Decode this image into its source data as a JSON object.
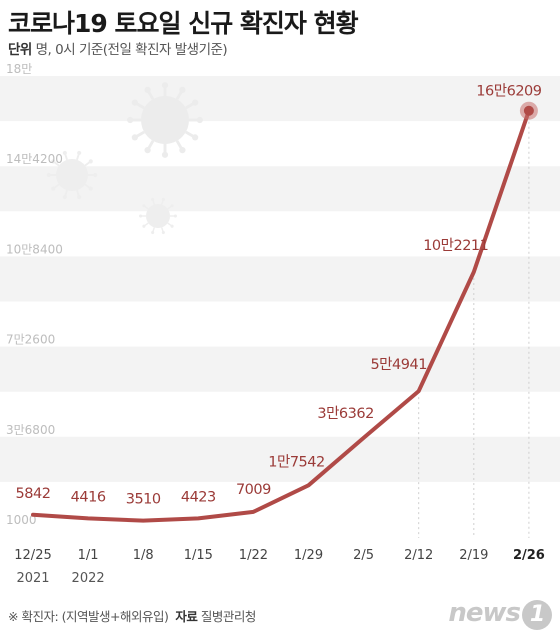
{
  "header": {
    "title": "코로나19 토요일 신규 확진자 현황",
    "unit_label": "단위",
    "unit_text": "명, 0시 기준(전일 확진자 발생기준)"
  },
  "chart_data": {
    "type": "line",
    "title": "코로나19 토요일 신규 확진자 현황",
    "x": [
      "12/25",
      "1/1",
      "1/8",
      "1/15",
      "1/22",
      "1/29",
      "2/5",
      "2/12",
      "2/19",
      "2/26"
    ],
    "x_sub": [
      "2021",
      "2022",
      "",
      "",
      "",
      "",
      "",
      "",
      "",
      ""
    ],
    "values": [
      5842,
      4416,
      3510,
      4423,
      7009,
      17542,
      null,
      54941,
      102211,
      166209
    ],
    "data_labels": [
      "5842",
      "4416",
      "3510",
      "4423",
      "7009",
      "1만7542",
      "3만6362",
      "5만4941",
      "10만2211",
      "16만6209"
    ],
    "line_values": [
      5842,
      4416,
      3510,
      4423,
      7009,
      17542,
      36362,
      54941,
      102211,
      166209
    ],
    "y_ticks": [
      1000,
      36800,
      72600,
      108400,
      144200,
      180000
    ],
    "y_tick_labels": [
      "1000",
      "3만6800",
      "7만2600",
      "10만8400",
      "14만4200",
      "18만"
    ],
    "ylim": [
      1000,
      180000
    ],
    "line_color": "#b04a47",
    "highlight_point_color": "#c76e6b",
    "grid": "alternating bands"
  },
  "footer": {
    "note": "※ 확진자: (지역발생+해외유입)",
    "source_label": "자료",
    "source": "질병관리청",
    "logo_text": "news",
    "logo_num": "1"
  }
}
